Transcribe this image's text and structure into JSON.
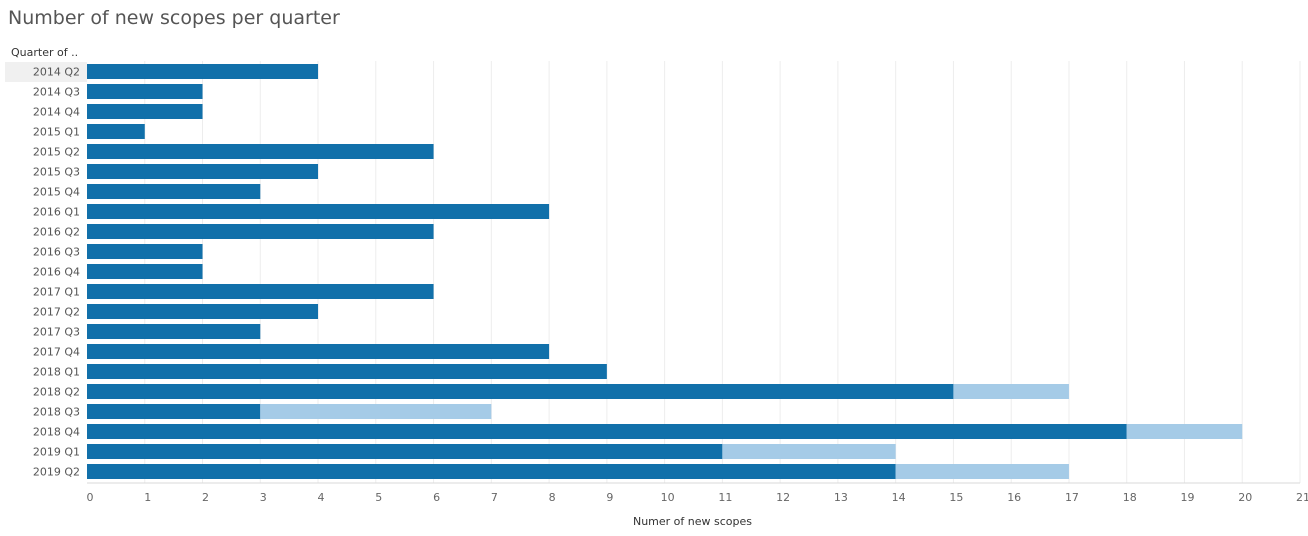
{
  "chart_data": {
    "type": "bar",
    "orientation": "horizontal",
    "stacked": true,
    "title": "Number of new scopes per quarter",
    "ylabel": "Quarter of ..",
    "xlabel": "Numer of new scopes",
    "xlim": [
      0,
      21
    ],
    "x_ticks": [
      "0",
      "1",
      "2",
      "3",
      "4",
      "5",
      "6",
      "7",
      "8",
      "9",
      "10",
      "11",
      "12",
      "13",
      "14",
      "15",
      "16",
      "17",
      "18",
      "19",
      "20",
      "21"
    ],
    "grid": true,
    "categories": [
      "2014 Q2",
      "2014 Q3",
      "2014 Q4",
      "2015 Q1",
      "2015 Q2",
      "2015 Q3",
      "2015 Q4",
      "2016 Q1",
      "2016 Q2",
      "2016 Q3",
      "2016 Q4",
      "2017 Q1",
      "2017 Q2",
      "2017 Q3",
      "2017 Q4",
      "2018 Q1",
      "2018 Q2",
      "2018 Q3",
      "2018 Q4",
      "2019 Q1",
      "2019 Q2"
    ],
    "highlighted_category": "2014 Q2",
    "series": [
      {
        "color": "#1170aa",
        "values": [
          4,
          2,
          2,
          1,
          6,
          4,
          3,
          8,
          6,
          2,
          2,
          6,
          4,
          3,
          8,
          9,
          15,
          3,
          18,
          11,
          14
        ]
      },
      {
        "color": "#a5cbe7",
        "values": [
          0,
          0,
          0,
          0,
          0,
          0,
          0,
          0,
          0,
          0,
          0,
          0,
          0,
          0,
          0,
          0,
          2,
          4,
          2,
          3,
          3
        ]
      }
    ]
  }
}
